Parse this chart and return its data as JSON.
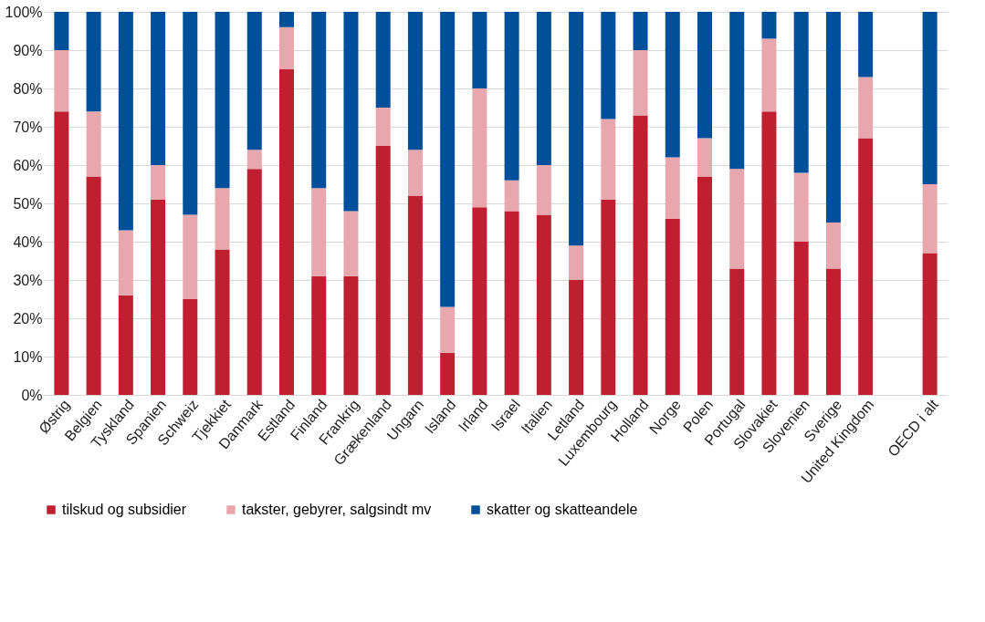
{
  "chart_data": {
    "type": "bar",
    "stacked": true,
    "categories": [
      "Østrig",
      "Belgien",
      "Tyskland",
      "Spanien",
      "Schweiz",
      "Tjekkiet",
      "Danmark",
      "Estland",
      "Finland",
      "Frankrig",
      "Grækenland",
      "Ungarn",
      "Island",
      "Irland",
      "Israel",
      "Italien",
      "Letland",
      "Luxembourg",
      "Holland",
      "Norge",
      "Polen",
      "Portugal",
      "Slovakiet",
      "Slovenien",
      "Sverige",
      "United Kingdom",
      null,
      "OECD i alt"
    ],
    "series": [
      {
        "name": "tilskud og subsidier",
        "color": "#c01f32",
        "values": [
          74,
          57,
          26,
          51,
          25,
          38,
          59,
          85,
          31,
          31,
          65,
          52,
          11,
          49,
          48,
          47,
          30,
          51,
          73,
          46,
          57,
          33,
          74,
          40,
          33,
          67,
          null,
          37
        ]
      },
      {
        "name": "takster, gebyrer, salgsindt mv",
        "color": "#e8a7ad",
        "values": [
          16,
          17,
          17,
          9,
          22,
          16,
          5,
          11,
          23,
          17,
          10,
          12,
          12,
          31,
          8,
          13,
          9,
          21,
          17,
          16,
          10,
          26,
          19,
          18,
          12,
          16,
          null,
          18
        ]
      },
      {
        "name": "skatter og skatteandele",
        "color": "#004f9a",
        "values": [
          10,
          26,
          57,
          40,
          53,
          46,
          36,
          4,
          46,
          52,
          25,
          36,
          77,
          20,
          44,
          40,
          61,
          28,
          10,
          38,
          33,
          41,
          7,
          42,
          55,
          17,
          null,
          45
        ]
      }
    ],
    "ylim": [
      0,
      100
    ],
    "yticks": [
      {
        "value": 0,
        "label": "0%"
      },
      {
        "value": 10,
        "label": "10%"
      },
      {
        "value": 20,
        "label": "20%"
      },
      {
        "value": 30,
        "label": "30%"
      },
      {
        "value": 40,
        "label": "40%"
      },
      {
        "value": 50,
        "label": "50%"
      },
      {
        "value": 60,
        "label": "60%"
      },
      {
        "value": 70,
        "label": "70%"
      },
      {
        "value": 80,
        "label": "80%"
      },
      {
        "value": 90,
        "label": "90%"
      },
      {
        "value": 100,
        "label": "100%"
      }
    ],
    "grid": "y",
    "legend": "bottom"
  }
}
